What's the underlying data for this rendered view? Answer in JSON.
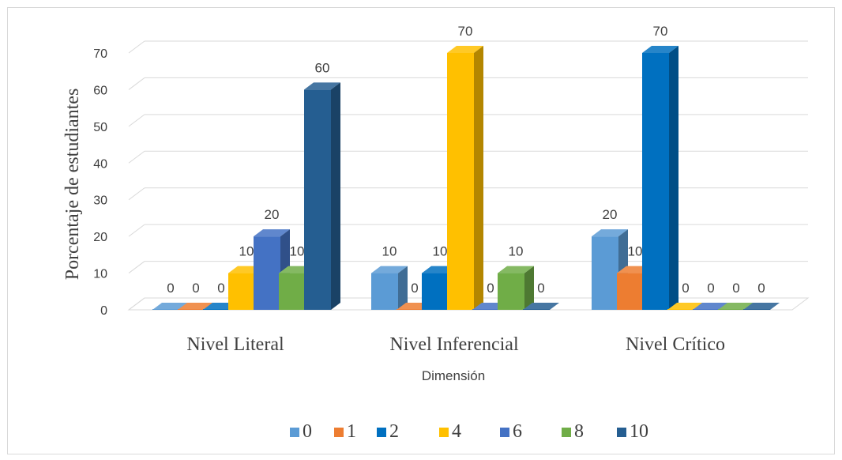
{
  "chart_data": {
    "type": "bar",
    "categories": [
      "Nivel Literal",
      "Nivel Inferencial",
      "Nivel Crítico"
    ],
    "series": [
      {
        "name": "0",
        "values": [
          0,
          10,
          20
        ],
        "color": "#5B9BD5"
      },
      {
        "name": "1",
        "values": [
          0,
          0,
          10
        ],
        "color": "#ED7D31"
      },
      {
        "name": "2",
        "values": [
          0,
          10,
          70
        ],
        "color": "#0070C0"
      },
      {
        "name": "4",
        "values": [
          10,
          70,
          0
        ],
        "color": "#FFC000"
      },
      {
        "name": "6",
        "values": [
          20,
          0,
          0
        ],
        "color": "#4472C4"
      },
      {
        "name": "8",
        "values": [
          10,
          10,
          0
        ],
        "color": "#70AD47"
      },
      {
        "name": "10",
        "values": [
          60,
          0,
          0
        ],
        "color": "#255E91"
      }
    ],
    "title": "",
    "xlabel": "Dimensión",
    "ylabel": "Porcentaje de estudiantes",
    "ylim": [
      0,
      70
    ],
    "yticks": [
      0,
      10,
      20,
      30,
      40,
      50,
      60,
      70
    ],
    "grid": true,
    "legend": "bottom",
    "style": "3d-clustered-column"
  }
}
